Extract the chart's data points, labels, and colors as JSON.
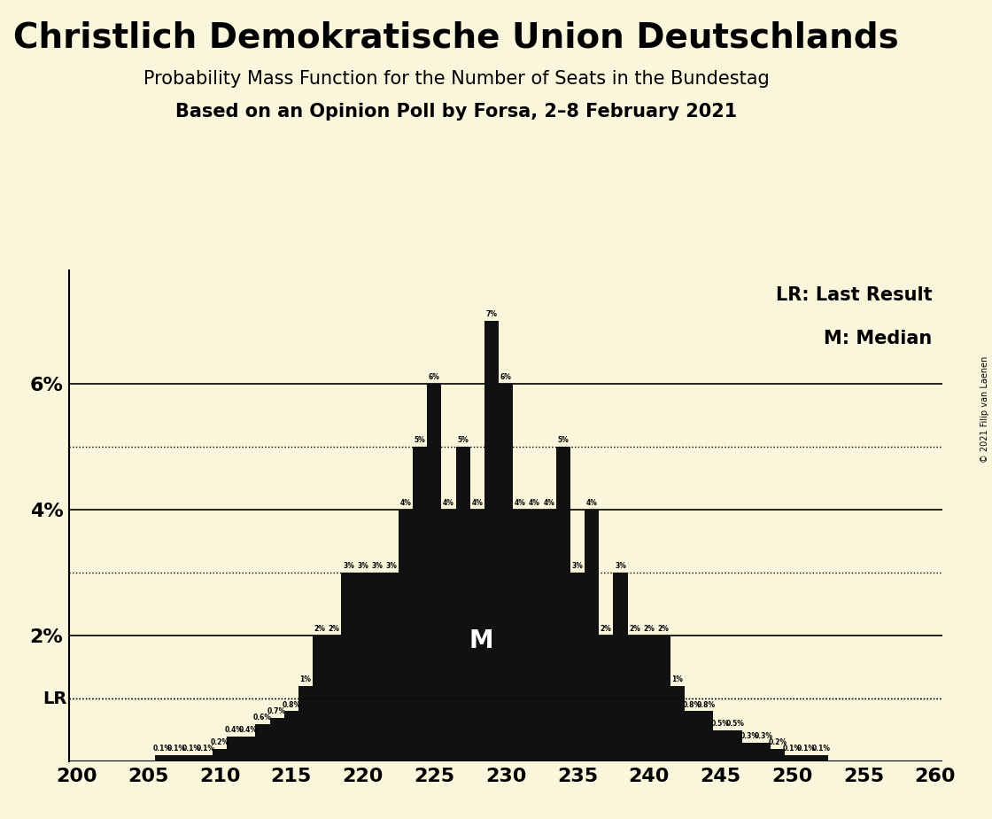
{
  "title": "Christlich Demokratische Union Deutschlands",
  "subtitle1": "Probability Mass Function for the Number of Seats in the Bundestag",
  "subtitle2": "Based on an Opinion Poll by Forsa, 2–8 February 2021",
  "copyright": "© 2021 Filip van Laenen",
  "legend_lr": "LR: Last Result",
  "legend_m": "M: Median",
  "background_color": "#FAF6DC",
  "bar_color": "#111111",
  "seats": [
    200,
    201,
    202,
    203,
    204,
    205,
    206,
    207,
    208,
    209,
    210,
    211,
    212,
    213,
    214,
    215,
    216,
    217,
    218,
    219,
    220,
    221,
    222,
    223,
    224,
    225,
    226,
    227,
    228,
    229,
    230,
    231,
    232,
    233,
    234,
    235,
    236,
    237,
    238,
    239,
    240,
    241,
    242,
    243,
    244,
    245,
    246,
    247,
    248,
    249,
    250,
    251,
    252,
    253,
    254,
    255,
    256,
    257,
    258,
    259,
    260
  ],
  "probs": [
    0.0,
    0.0,
    0.0,
    0.0,
    0.0,
    0.0,
    0.1,
    0.1,
    0.1,
    0.1,
    0.2,
    0.4,
    0.4,
    0.6,
    0.7,
    0.8,
    1.2,
    2.0,
    2.0,
    3.0,
    3.0,
    3.0,
    3.0,
    4.0,
    5.0,
    6.0,
    4.0,
    5.0,
    4.0,
    7.0,
    6.0,
    4.0,
    4.0,
    4.0,
    5.0,
    3.0,
    4.0,
    2.0,
    3.0,
    2.0,
    2.0,
    2.0,
    1.2,
    0.8,
    0.8,
    0.5,
    0.5,
    0.3,
    0.3,
    0.2,
    0.1,
    0.1,
    0.1,
    0.0,
    0.0,
    0.0,
    0.0,
    0.0,
    0.0,
    0.0,
    0.0
  ],
  "lr_seat": 246,
  "median_seat": 228,
  "xlim": [
    199.5,
    260.5
  ],
  "ylim": [
    0,
    7.8
  ],
  "xticks": [
    200,
    205,
    210,
    215,
    220,
    225,
    230,
    235,
    240,
    245,
    250,
    255,
    260
  ],
  "yticks": [
    2.0,
    4.0,
    6.0
  ],
  "dotted_yticks": [
    1.0,
    3.0,
    5.0
  ],
  "ylabel_values": [
    "2%",
    "4%",
    "6%"
  ],
  "lr_level": 1.0,
  "lr_label": "LR",
  "m_label": "M",
  "title_fontsize": 28,
  "subtitle1_fontsize": 15,
  "subtitle2_fontsize": 15,
  "tick_fontsize": 16,
  "legend_fontsize": 15,
  "label_fontsize": 5.5
}
